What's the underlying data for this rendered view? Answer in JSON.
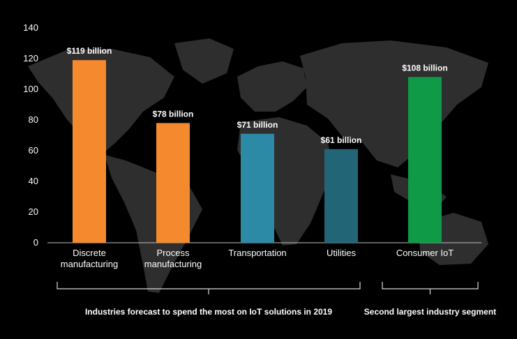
{
  "chart_data": {
    "type": "bar",
    "categories": [
      "Discrete manufacturing",
      "Process manufacturing",
      "Transportation",
      "Utilities",
      "Consumer IoT"
    ],
    "category_lines": [
      [
        "Discrete",
        "manufacturing"
      ],
      [
        "Process",
        "manufacturing"
      ],
      [
        "Transportation"
      ],
      [
        "Utilities"
      ],
      [
        "Consumer IoT"
      ]
    ],
    "values": [
      119,
      78,
      71,
      61,
      108
    ],
    "data_labels": [
      "$119 billion",
      "$78 billion",
      "$71 billion",
      "$61 billion",
      "$108 billion"
    ],
    "bar_colors": [
      "#f5892e",
      "#f5892e",
      "#2d8aa6",
      "#226576",
      "#0f9a48"
    ],
    "ylim": [
      0,
      140
    ],
    "yticks": [
      0,
      20,
      40,
      60,
      80,
      100,
      120,
      140
    ],
    "ytick_labels": [
      "0",
      "20",
      "40",
      "60",
      "80",
      "100",
      "120",
      "140"
    ],
    "grid": false,
    "groups": [
      {
        "label": "Industries forecast to spend the most on IoT solutions in 2019",
        "first": 0,
        "last": 3
      },
      {
        "label": "Second largest industry segment",
        "first": 4,
        "last": 4
      }
    ]
  },
  "style": {
    "background": "#000000",
    "map_color": "#2e2e2e",
    "axis_color": "#bfbfbf",
    "bracket_color": "#d9d9d9"
  }
}
